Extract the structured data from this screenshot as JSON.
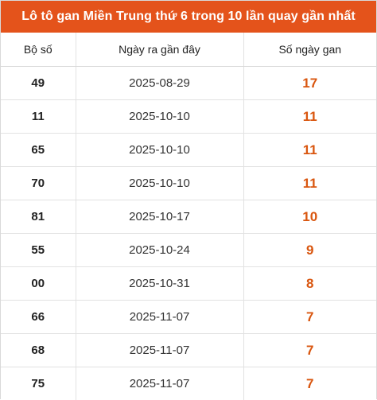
{
  "title": "Lô tô gan Miền Trung thứ 6 trong 10 lần quay gần nhất",
  "colors": {
    "header_bg": "#e4531b",
    "header_text": "#ffffff",
    "gan_value": "#d9560f"
  },
  "columns": [
    "Bộ số",
    "Ngày ra gần đây",
    "Số ngày gan"
  ],
  "rows": [
    {
      "so": "49",
      "ngay": "2025-08-29",
      "gan": "17"
    },
    {
      "so": "11",
      "ngay": "2025-10-10",
      "gan": "11"
    },
    {
      "so": "65",
      "ngay": "2025-10-10",
      "gan": "11"
    },
    {
      "so": "70",
      "ngay": "2025-10-10",
      "gan": "11"
    },
    {
      "so": "81",
      "ngay": "2025-10-17",
      "gan": "10"
    },
    {
      "so": "55",
      "ngay": "2025-10-24",
      "gan": "9"
    },
    {
      "so": "00",
      "ngay": "2025-10-31",
      "gan": "8"
    },
    {
      "so": "66",
      "ngay": "2025-11-07",
      "gan": "7"
    },
    {
      "so": "68",
      "ngay": "2025-11-07",
      "gan": "7"
    },
    {
      "so": "75",
      "ngay": "2025-11-07",
      "gan": "7"
    }
  ]
}
